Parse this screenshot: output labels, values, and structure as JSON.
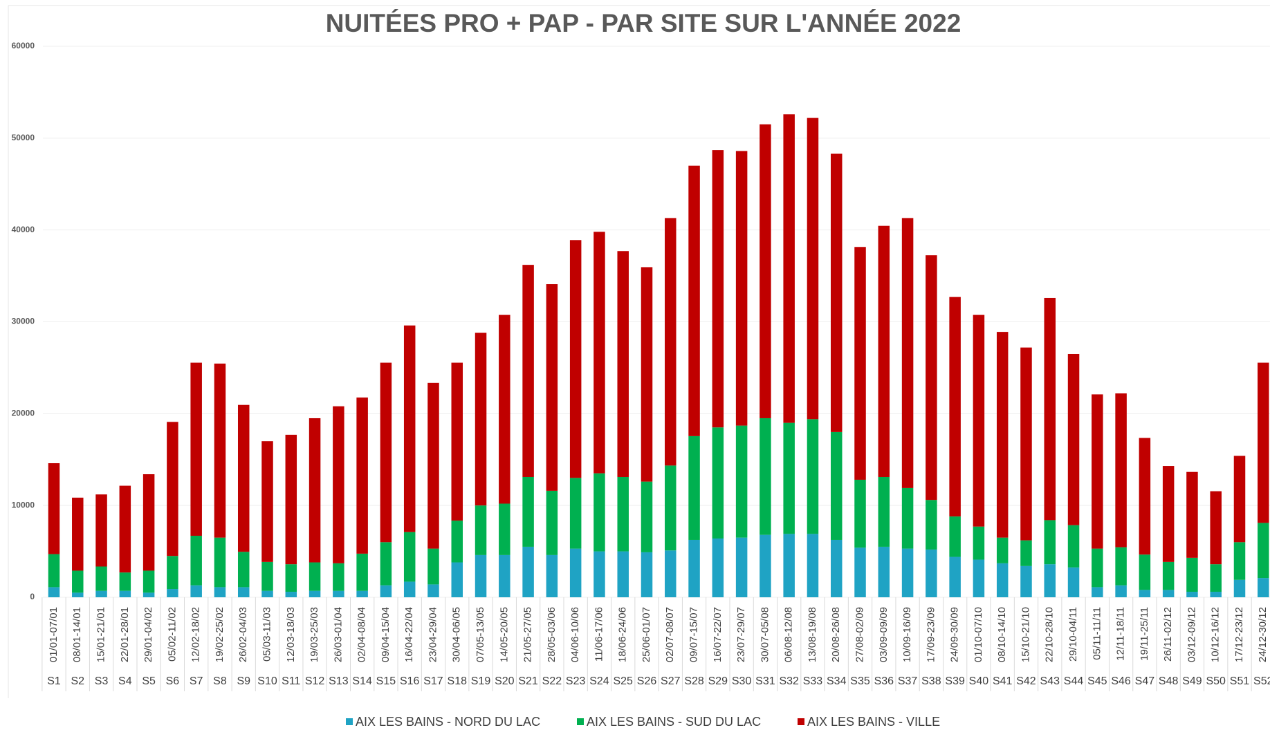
{
  "chart_data": {
    "type": "stacked_bar",
    "title": "NUITÉES PRO + PAP - PAR SITE SUR L'ANNÉE 2022",
    "categories": [
      "S1",
      "S2",
      "S3",
      "S4",
      "S5",
      "S6",
      "S7",
      "S8",
      "S9",
      "S10",
      "S11",
      "S12",
      "S13",
      "S14",
      "S15",
      "S16",
      "S17",
      "S18",
      "S19",
      "S20",
      "S21",
      "S22",
      "S23",
      "S24",
      "S25",
      "S26",
      "S27",
      "S28",
      "S29",
      "S30",
      "S31",
      "S32",
      "S33",
      "S34",
      "S35",
      "S36",
      "S37",
      "S38",
      "S39",
      "S40",
      "S41",
      "S42",
      "S43",
      "S44",
      "S45",
      "S46",
      "S47",
      "S48",
      "S49",
      "S50",
      "S51",
      "S52"
    ],
    "category_dates": [
      "01/01-07/01",
      "08/01-14/01",
      "15/01-21/01",
      "22/01-28/01",
      "29/01-04/02",
      "05/02-11/02",
      "12/02-18/02",
      "19/02-25/02",
      "26/02-04/03",
      "05/03-11/03",
      "12/03-18/03",
      "19/03-25/03",
      "26/03-01/04",
      "02/04-08/04",
      "09/04-15/04",
      "16/04-22/04",
      "23/04-29/04",
      "30/04-06/05",
      "07/05-13/05",
      "14/05-20/05",
      "21/05-27/05",
      "28/05-03/06",
      "04/06-10/06",
      "11/06-17/06",
      "18/06-24/06",
      "25/06-01/07",
      "02/07-08/07",
      "09/07-15/07",
      "16/07-22/07",
      "23/07-29/07",
      "30/07-05/08",
      "06/08-12/08",
      "13/08-19/08",
      "20/08-26/08",
      "27/08-02/09",
      "03/09-09/09",
      "10/09-16/09",
      "17/09-23/09",
      "24/09-30/09",
      "01/10-07/10",
      "08/10-14/10",
      "15/10-21/10",
      "22/10-28/10",
      "29/10-04/11",
      "05/11-11/11",
      "12/11-18/11",
      "19/11-25/11",
      "26/11-02/12",
      "03/12-09/12",
      "10/12-16/12",
      "17/12-23/12",
      "24/12-30/12"
    ],
    "series": [
      {
        "name": "AIX LES BAINS - NORD DU LAC",
        "color": "#1fa3c4",
        "values": [
          1100,
          500,
          700,
          700,
          500,
          900,
          1300,
          1100,
          1100,
          700,
          600,
          700,
          700,
          700,
          1300,
          1700,
          1400,
          3800,
          4600,
          4600,
          5500,
          4600,
          5300,
          5000,
          5000,
          4900,
          5100,
          6250,
          6400,
          6500,
          6800,
          6900,
          6900,
          6250,
          5400,
          5500,
          5300,
          5200,
          4400,
          4100,
          3700,
          3400,
          3600,
          3250,
          1100,
          1300,
          800,
          800,
          600,
          600,
          1900,
          2100
        ]
      },
      {
        "name": "AIX LES BAINS - SUD DU LAC",
        "color": "#00b050",
        "values": [
          3600,
          2400,
          2650,
          2000,
          2400,
          3600,
          5400,
          5400,
          3850,
          3150,
          3000,
          3100,
          3000,
          4050,
          4700,
          5400,
          3900,
          4550,
          5400,
          5600,
          7600,
          7000,
          7700,
          8500,
          8100,
          7700,
          9250,
          11300,
          12100,
          12200,
          12700,
          12100,
          12500,
          11750,
          7400,
          7600,
          6600,
          5400,
          4400,
          3600,
          2800,
          2800,
          4800,
          4600,
          4200,
          4150,
          3850,
          3050,
          3700,
          3000,
          4100,
          6000
        ]
      },
      {
        "name": "AIX LES BAINS - VILLE",
        "color": "#c00000",
        "values": [
          9900,
          7950,
          7850,
          9450,
          10500,
          14600,
          18850,
          18950,
          16000,
          13150,
          14100,
          15700,
          17100,
          17000,
          19550,
          22500,
          18050,
          17200,
          18800,
          20550,
          23100,
          22500,
          25900,
          26300,
          24600,
          23350,
          26950,
          29450,
          30200,
          29900,
          32000,
          33600,
          32800,
          30300,
          25350,
          27350,
          29400,
          26650,
          23900,
          23050,
          22400,
          21000,
          24200,
          18650,
          16800,
          16750,
          12700,
          10450,
          9350,
          7950,
          9400,
          17450
        ]
      }
    ],
    "ylim": [
      0,
      60000
    ],
    "yticks": [
      0,
      10000,
      20000,
      30000,
      40000,
      50000,
      60000
    ],
    "grid": true,
    "legend": "bottom"
  }
}
